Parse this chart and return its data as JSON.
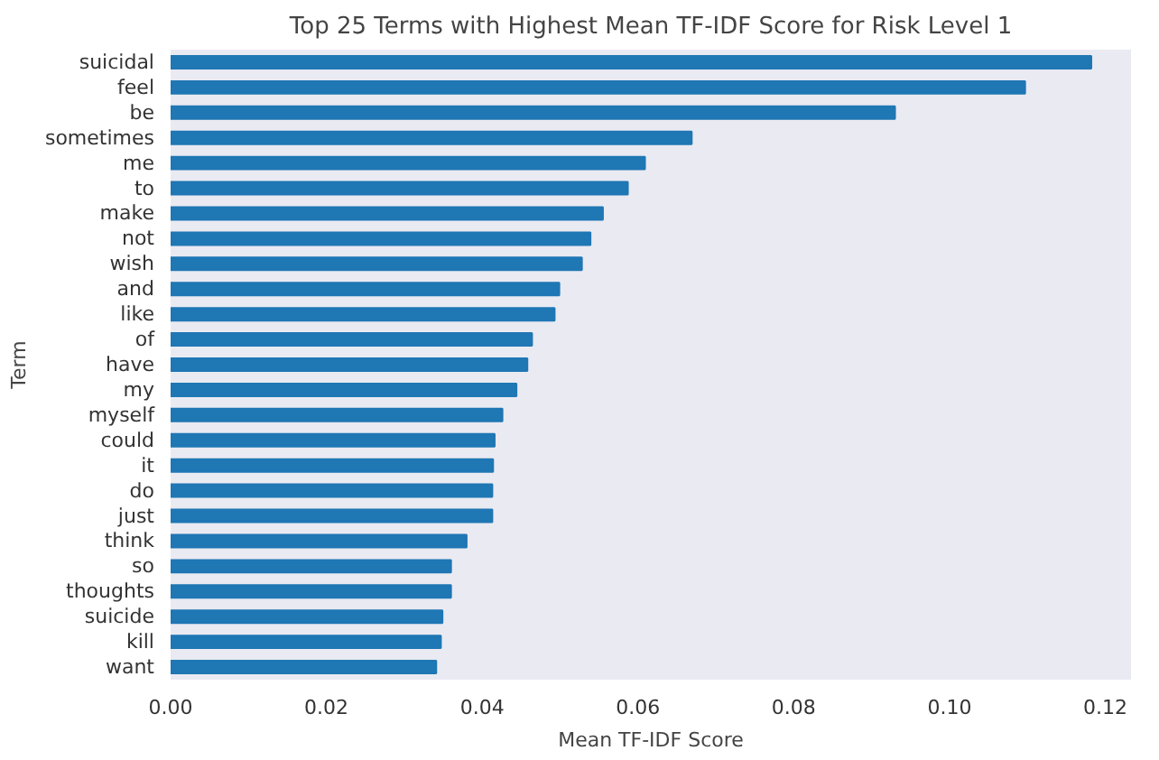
{
  "chart_data": {
    "type": "bar",
    "orientation": "horizontal",
    "title": "Top 25 Terms with Highest Mean TF-IDF Score for Risk Level 1",
    "xlabel": "Mean TF-IDF Score",
    "ylabel": "Term",
    "categories": [
      "suicidal",
      "feel",
      "be",
      "sometimes",
      "me",
      "to",
      "make",
      "not",
      "wish",
      "and",
      "like",
      "of",
      "have",
      "my",
      "myself",
      "could",
      "it",
      "do",
      "just",
      "think",
      "so",
      "thoughts",
      "suicide",
      "kill",
      "want"
    ],
    "values": [
      0.1182,
      0.1097,
      0.093,
      0.0669,
      0.0609,
      0.0587,
      0.0555,
      0.0539,
      0.0528,
      0.0499,
      0.0493,
      0.0464,
      0.0458,
      0.0444,
      0.0426,
      0.0416,
      0.0414,
      0.0413,
      0.0413,
      0.038,
      0.036,
      0.036,
      0.0349,
      0.0347,
      0.0341
    ],
    "color": "#1f77b4",
    "xlim": [
      0,
      0.1233
    ],
    "xticks": [
      {
        "value": 0,
        "label": "0.00"
      },
      {
        "value": 0.02,
        "label": "0.02"
      },
      {
        "value": 0.04,
        "label": "0.04"
      },
      {
        "value": 0.06,
        "label": "0.06"
      },
      {
        "value": 0.08,
        "label": "0.08"
      },
      {
        "value": 0.1,
        "label": "0.10"
      },
      {
        "value": 0.12,
        "label": "0.12"
      }
    ],
    "grid": false
  }
}
